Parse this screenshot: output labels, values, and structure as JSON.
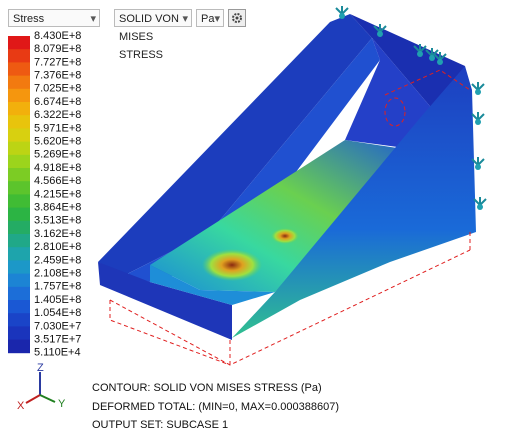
{
  "toolbar": {
    "result": "Stress",
    "component": "SOLID VON MISES STRESS",
    "unit": "Pa"
  },
  "legend": {
    "labels": [
      "8.430E+8",
      "8.079E+8",
      "7.727E+8",
      "7.376E+8",
      "7.025E+8",
      "6.674E+8",
      "6.322E+8",
      "5.971E+8",
      "5.620E+8",
      "5.269E+8",
      "4.918E+8",
      "4.566E+8",
      "4.215E+8",
      "3.864E+8",
      "3.513E+8",
      "3.162E+8",
      "2.810E+8",
      "2.459E+8",
      "2.108E+8",
      "1.757E+8",
      "1.405E+8",
      "1.054E+8",
      "7.030E+7",
      "3.517E+7",
      "5.110E+4"
    ]
  },
  "triad": {
    "x": "X",
    "y": "Y",
    "z": "Z"
  },
  "info": {
    "contour": "CONTOUR: SOLID VON MISES STRESS (Pa)",
    "deformed": "DEFORMED TOTAL: (MIN=0, MAX=0.000388607)",
    "output_set": "OUTPUT SET: SUBCASE 1"
  }
}
